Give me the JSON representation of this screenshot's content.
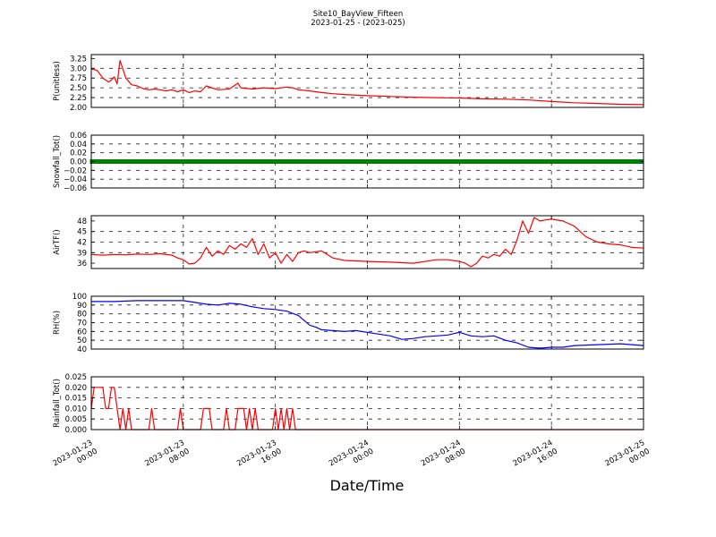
{
  "figure": {
    "title": "Site10_BayView_Fifteen",
    "subtitle": "2023-01-25 - (2023-025)",
    "xlabel": "Date/Time"
  },
  "x_ticks": [
    {
      "x": "2023-01-23 00:00",
      "line1": "2023-01-23",
      "line2": "00:00"
    },
    {
      "x": "2023-01-23 08:00",
      "line1": "2023-01-23",
      "line2": "08:00"
    },
    {
      "x": "2023-01-23 16:00",
      "line1": "2023-01-23",
      "line2": "16:00"
    },
    {
      "x": "2023-01-24 00:00",
      "line1": "2023-01-24",
      "line2": "00:00"
    },
    {
      "x": "2023-01-24 08:00",
      "line1": "2023-01-24",
      "line2": "08:00"
    },
    {
      "x": "2023-01-24 16:00",
      "line1": "2023-01-24",
      "line2": "16:00"
    },
    {
      "x": "2023-01-25 00:00",
      "line1": "2023-01-25",
      "line2": "00:00"
    }
  ],
  "chart_data": [
    {
      "type": "line",
      "ylabel": "P(unitless)",
      "ylim": [
        2.0,
        3.35
      ],
      "yticks": [
        "2.00",
        "2.25",
        "2.50",
        "2.75",
        "3.00",
        "3.25"
      ],
      "xlim": [
        "2023-01-23 00:00",
        "2023-01-25 00:00"
      ],
      "grid": true,
      "series": [
        {
          "color": "#ff0000",
          "x": [
            "2023-01-23 00:00",
            "2023-01-23 00:30",
            "2023-01-23 01:00",
            "2023-01-23 01:30",
            "2023-01-23 01:45",
            "2023-01-23 02:00",
            "2023-01-23 02:15",
            "2023-01-23 02:30",
            "2023-01-23 03:00",
            "2023-01-23 03:30",
            "2023-01-23 04:00",
            "2023-01-23 04:30",
            "2023-01-23 05:00",
            "2023-01-23 05:30",
            "2023-01-23 06:00",
            "2023-01-23 06:30",
            "2023-01-23 07:00",
            "2023-01-23 07:30",
            "2023-01-23 08:00",
            "2023-01-23 08:30",
            "2023-01-23 09:00",
            "2023-01-23 09:30",
            "2023-01-23 10:00",
            "2023-01-23 11:00",
            "2023-01-23 12:00",
            "2023-01-23 12:45",
            "2023-01-23 13:00",
            "2023-01-23 14:00",
            "2023-01-23 15:00",
            "2023-01-23 16:00",
            "2023-01-23 17:00",
            "2023-01-23 17:30",
            "2023-01-23 18:00",
            "2023-01-23 19:00",
            "2023-01-23 20:00",
            "2023-01-23 21:00",
            "2023-01-23 22:00",
            "2023-01-24 00:00",
            "2023-01-24 02:00",
            "2023-01-24 04:00",
            "2023-01-24 06:00",
            "2023-01-24 08:00",
            "2023-01-24 10:00",
            "2023-01-24 12:00",
            "2023-01-24 14:00",
            "2023-01-24 16:00",
            "2023-01-24 18:00",
            "2023-01-24 20:00",
            "2023-01-24 22:00",
            "2023-01-25 00:00"
          ],
          "values": [
            2.98,
            2.95,
            2.75,
            2.65,
            2.7,
            2.78,
            2.6,
            3.2,
            2.75,
            2.58,
            2.55,
            2.48,
            2.45,
            2.47,
            2.45,
            2.42,
            2.45,
            2.4,
            2.45,
            2.38,
            2.42,
            2.4,
            2.55,
            2.45,
            2.47,
            2.62,
            2.5,
            2.47,
            2.5,
            2.48,
            2.52,
            2.5,
            2.45,
            2.42,
            2.38,
            2.35,
            2.33,
            2.3,
            2.28,
            2.26,
            2.25,
            2.24,
            2.22,
            2.21,
            2.19,
            2.15,
            2.12,
            2.1,
            2.08,
            2.07
          ]
        }
      ]
    },
    {
      "type": "line",
      "ylabel": "Snowfall_Tot()",
      "ylim": [
        -0.06,
        0.06
      ],
      "yticks": [
        "−0.06",
        "−0.04",
        "−0.02",
        "0.00",
        "0.02",
        "0.04",
        "0.06"
      ],
      "xlim": [
        "2023-01-23 00:00",
        "2023-01-25 00:00"
      ],
      "grid": true,
      "series": [
        {
          "color": "#008000",
          "marker": "square",
          "x": [
            "2023-01-23 00:00",
            "2023-01-25 00:00"
          ],
          "values": [
            0.0,
            0.0
          ]
        }
      ]
    },
    {
      "type": "line",
      "ylabel": "AirTF()",
      "ylim": [
        34.5,
        49.5
      ],
      "yticks": [
        "36",
        "39",
        "42",
        "45",
        "48"
      ],
      "xlim": [
        "2023-01-23 00:00",
        "2023-01-25 00:00"
      ],
      "grid": true,
      "series": [
        {
          "color": "#ff0000",
          "x": [
            "2023-01-23 00:00",
            "2023-01-23 01:00",
            "2023-01-23 02:00",
            "2023-01-23 03:00",
            "2023-01-23 04:00",
            "2023-01-23 05:00",
            "2023-01-23 06:00",
            "2023-01-23 07:00",
            "2023-01-23 07:30",
            "2023-01-23 08:00",
            "2023-01-23 08:30",
            "2023-01-23 09:00",
            "2023-01-23 09:30",
            "2023-01-23 10:00",
            "2023-01-23 10:30",
            "2023-01-23 11:00",
            "2023-01-23 11:30",
            "2023-01-23 12:00",
            "2023-01-23 12:30",
            "2023-01-23 13:00",
            "2023-01-23 13:30",
            "2023-01-23 14:00",
            "2023-01-23 14:30",
            "2023-01-23 15:00",
            "2023-01-23 15:30",
            "2023-01-23 16:00",
            "2023-01-23 16:30",
            "2023-01-23 17:00",
            "2023-01-23 17:30",
            "2023-01-23 18:00",
            "2023-01-23 18:30",
            "2023-01-23 19:00",
            "2023-01-23 20:00",
            "2023-01-23 21:00",
            "2023-01-23 22:00",
            "2023-01-24 00:00",
            "2023-01-24 02:00",
            "2023-01-24 04:00",
            "2023-01-24 06:00",
            "2023-01-24 07:00",
            "2023-01-24 08:00",
            "2023-01-24 08:30",
            "2023-01-24 09:00",
            "2023-01-24 09:30",
            "2023-01-24 10:00",
            "2023-01-24 10:30",
            "2023-01-24 11:00",
            "2023-01-24 11:30",
            "2023-01-24 12:00",
            "2023-01-24 12:30",
            "2023-01-24 13:00",
            "2023-01-24 13:30",
            "2023-01-24 14:00",
            "2023-01-24 14:30",
            "2023-01-24 15:00",
            "2023-01-24 15:30",
            "2023-01-24 16:00",
            "2023-01-24 17:00",
            "2023-01-24 18:00",
            "2023-01-24 19:00",
            "2023-01-24 20:00",
            "2023-01-24 21:00",
            "2023-01-24 22:00",
            "2023-01-24 23:00",
            "2023-01-25 00:00"
          ],
          "values": [
            38.5,
            38.3,
            38.5,
            38.4,
            38.6,
            38.5,
            38.7,
            38.3,
            37.5,
            37.0,
            35.8,
            36.0,
            37.5,
            40.5,
            38.0,
            39.5,
            38.5,
            41.0,
            40.0,
            41.5,
            40.5,
            43.0,
            38.5,
            41.5,
            37.5,
            39.0,
            36.0,
            38.5,
            36.5,
            39.0,
            39.5,
            39.0,
            39.5,
            37.5,
            36.8,
            36.5,
            36.3,
            36.0,
            37.0,
            37.0,
            36.5,
            36.0,
            35.0,
            36.0,
            38.0,
            37.5,
            38.5,
            38.0,
            40.0,
            38.5,
            42.5,
            48.0,
            44.5,
            49.0,
            48.0,
            48.3,
            48.5,
            48.0,
            46.5,
            43.5,
            42.0,
            41.5,
            41.2,
            40.5,
            40.3
          ]
        }
      ]
    },
    {
      "type": "line",
      "ylabel": "RH(%)",
      "ylim": [
        40,
        100
      ],
      "yticks": [
        "40",
        "50",
        "60",
        "70",
        "80",
        "90",
        "100"
      ],
      "xlim": [
        "2023-01-23 00:00",
        "2023-01-25 00:00"
      ],
      "grid": true,
      "series": [
        {
          "color": "#0000ff",
          "x": [
            "2023-01-23 00:00",
            "2023-01-23 02:00",
            "2023-01-23 04:00",
            "2023-01-23 06:00",
            "2023-01-23 08:00",
            "2023-01-23 09:00",
            "2023-01-23 10:00",
            "2023-01-23 11:00",
            "2023-01-23 12:00",
            "2023-01-23 13:00",
            "2023-01-23 14:00",
            "2023-01-23 15:00",
            "2023-01-23 16:00",
            "2023-01-23 17:00",
            "2023-01-23 18:00",
            "2023-01-23 19:00",
            "2023-01-23 19:30",
            "2023-01-23 20:00",
            "2023-01-23 21:00",
            "2023-01-23 22:00",
            "2023-01-23 23:00",
            "2023-01-24 00:00",
            "2023-01-24 01:00",
            "2023-01-24 02:00",
            "2023-01-24 03:00",
            "2023-01-24 04:00",
            "2023-01-24 05:00",
            "2023-01-24 06:00",
            "2023-01-24 07:00",
            "2023-01-24 08:00",
            "2023-01-24 09:00",
            "2023-01-24 10:00",
            "2023-01-24 11:00",
            "2023-01-24 12:00",
            "2023-01-24 13:00",
            "2023-01-24 14:00",
            "2023-01-24 15:00",
            "2023-01-24 16:00",
            "2023-01-24 17:00",
            "2023-01-24 18:00",
            "2023-01-24 20:00",
            "2023-01-24 22:00",
            "2023-01-25 00:00"
          ],
          "values": [
            94,
            94,
            95,
            95,
            95,
            93,
            91,
            90,
            92,
            91,
            88,
            86,
            85,
            83,
            78,
            67,
            65,
            62,
            61,
            60,
            61,
            59,
            57,
            55,
            51,
            52,
            54,
            55,
            56,
            59,
            55,
            54,
            55,
            50,
            47,
            42,
            41,
            42,
            42,
            44,
            45,
            46,
            44
          ]
        }
      ]
    },
    {
      "type": "line",
      "ylabel": "Rainfall_Tot()",
      "ylim": [
        0.0,
        0.025
      ],
      "yticks": [
        "0.000",
        "0.005",
        "0.010",
        "0.015",
        "0.020",
        "0.025"
      ],
      "xlim": [
        "2023-01-23 00:00",
        "2023-01-25 00:00"
      ],
      "grid": true,
      "series": [
        {
          "color": "#ff0000",
          "x": [
            "2023-01-23 00:00",
            "2023-01-23 00:15",
            "2023-01-23 00:30",
            "2023-01-23 01:00",
            "2023-01-23 01:15",
            "2023-01-23 01:30",
            "2023-01-23 01:45",
            "2023-01-23 02:00",
            "2023-01-23 02:15",
            "2023-01-23 02:30",
            "2023-01-23 02:45",
            "2023-01-23 03:00",
            "2023-01-23 03:15",
            "2023-01-23 03:30",
            "2023-01-23 03:45",
            "2023-01-23 04:00",
            "2023-01-23 05:00",
            "2023-01-23 05:15",
            "2023-01-23 05:30",
            "2023-01-23 07:30",
            "2023-01-23 07:45",
            "2023-01-23 08:00",
            "2023-01-23 09:30",
            "2023-01-23 09:45",
            "2023-01-23 10:15",
            "2023-01-23 10:30",
            "2023-01-23 11:30",
            "2023-01-23 11:45",
            "2023-01-23 12:00",
            "2023-01-23 12:30",
            "2023-01-23 12:45",
            "2023-01-23 13:15",
            "2023-01-23 13:30",
            "2023-01-23 13:45",
            "2023-01-23 14:00",
            "2023-01-23 14:15",
            "2023-01-23 14:30",
            "2023-01-23 14:45",
            "2023-01-23 15:45",
            "2023-01-23 16:00",
            "2023-01-23 16:15",
            "2023-01-23 16:30",
            "2023-01-23 16:45",
            "2023-01-23 17:00",
            "2023-01-23 17:15",
            "2023-01-23 17:30",
            "2023-01-23 17:45",
            "2023-01-23 18:00",
            "2023-01-25 00:00"
          ],
          "values": [
            0.01,
            0.02,
            0.02,
            0.02,
            0.01,
            0.01,
            0.02,
            0.02,
            0.01,
            0.0,
            0.01,
            0.0,
            0.01,
            0.0,
            0.0,
            0.0,
            0.0,
            0.01,
            0.0,
            0.0,
            0.01,
            0.0,
            0.0,
            0.01,
            0.01,
            0.0,
            0.0,
            0.01,
            0.0,
            0.0,
            0.01,
            0.01,
            0.0,
            0.01,
            0.0,
            0.01,
            0.0,
            0.0,
            0.0,
            0.01,
            0.0,
            0.01,
            0.0,
            0.01,
            0.0,
            0.01,
            0.0,
            0.0,
            0.0
          ]
        }
      ]
    }
  ]
}
